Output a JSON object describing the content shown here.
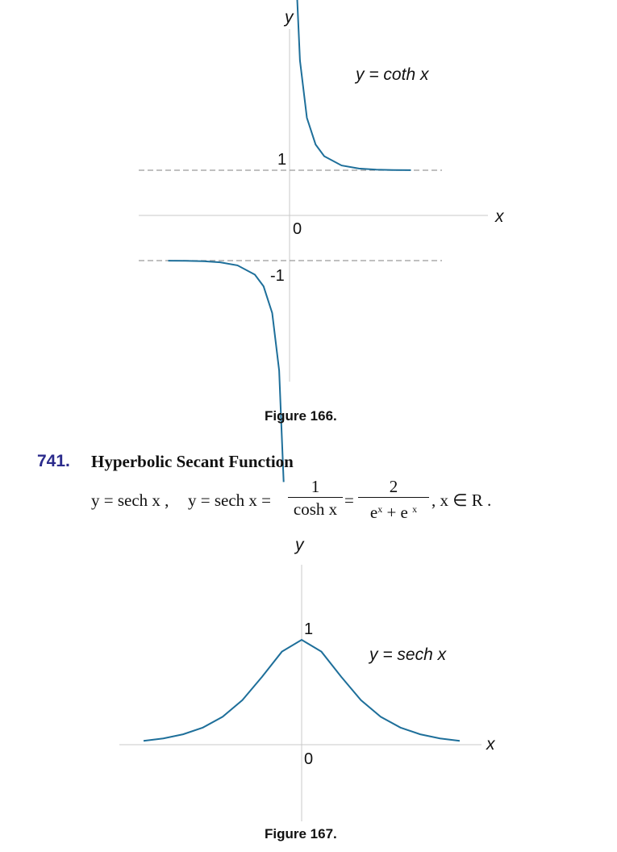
{
  "figure166": {
    "caption": "Figure 166.",
    "y_axis_label": "y",
    "x_axis_label": "x",
    "equation_label": "y = coth x",
    "tick_labels": {
      "one": "1",
      "zero": "0",
      "minus_one": "-1"
    }
  },
  "section": {
    "number": "741.",
    "title": "Hyperbolic Secant Function",
    "formula": {
      "part1": "y = sech x ,",
      "part2": "y = sech x =",
      "frac1_num": "1",
      "frac1_den": "cosh x",
      "equals": "=",
      "frac2_num": "2",
      "frac2_den_base": "e",
      "frac2_den_exp1": "x",
      "frac2_den_plus": "+ e",
      "frac2_den_exp2": "x",
      "domain": ", x ∈ R ."
    }
  },
  "figure167": {
    "caption": "Figure 167.",
    "y_axis_label": "y",
    "x_axis_label": "x",
    "equation_label": "y = sech x",
    "tick_labels": {
      "one": "1",
      "zero": "0"
    }
  },
  "chart_data": [
    {
      "type": "line",
      "function": "coth",
      "series": [
        {
          "branch": "x>0",
          "x": [
            0.19,
            0.3,
            0.5,
            0.75,
            1.0,
            1.5,
            2.0,
            2.5,
            3.0,
            3.5
          ],
          "y": [
            5.3,
            3.43,
            2.16,
            1.57,
            1.31,
            1.105,
            1.037,
            1.013,
            1.005,
            1.002
          ]
        },
        {
          "branch": "x<0",
          "x": [
            -3.5,
            -3.0,
            -2.5,
            -2.0,
            -1.5,
            -1.0,
            -0.75,
            -0.5,
            -0.3,
            -0.17
          ],
          "y": [
            -1.002,
            -1.005,
            -1.013,
            -1.037,
            -1.105,
            -1.31,
            -1.57,
            -2.16,
            -3.43,
            -5.9
          ]
        }
      ],
      "asymptotes": [
        1,
        -1
      ],
      "accent_color": "#1e6f9a",
      "asymptote_color": "#9a9a9a"
    },
    {
      "type": "line",
      "function": "sech",
      "series": [
        {
          "x": [
            -4,
            -3.5,
            -3,
            -2.5,
            -2,
            -1.5,
            -1,
            -0.5,
            0,
            0.5,
            1,
            1.5,
            2,
            2.5,
            3,
            3.5,
            4
          ],
          "y": [
            0.037,
            0.06,
            0.099,
            0.163,
            0.266,
            0.425,
            0.648,
            0.887,
            1.0,
            0.887,
            0.648,
            0.425,
            0.266,
            0.163,
            0.099,
            0.06,
            0.037
          ]
        }
      ],
      "accent_color": "#1e6f9a"
    }
  ]
}
